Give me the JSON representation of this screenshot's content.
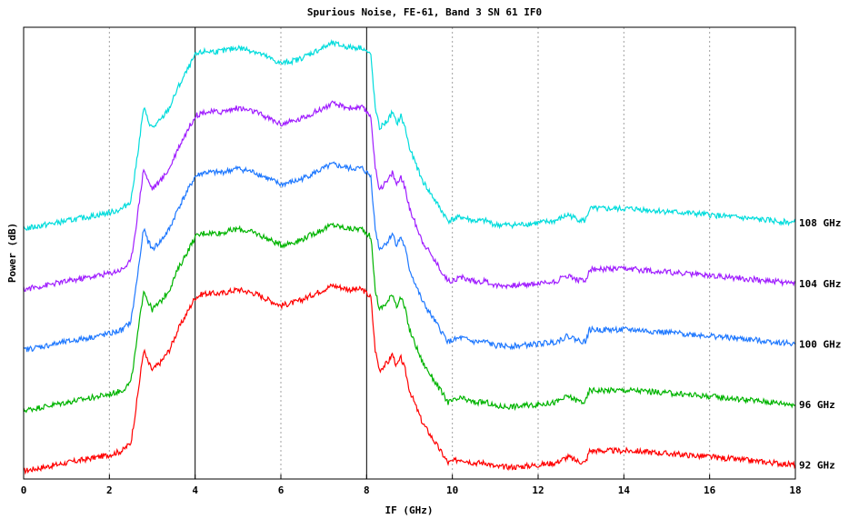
{
  "chart_data": {
    "type": "line",
    "title": "Spurious Noise, FE-61, Band 3 SN 61 IF0",
    "xlabel": "IF (GHz)",
    "ylabel": "Power (dB)",
    "xlim": [
      0,
      18
    ],
    "xticks": [
      "0",
      "2",
      "4",
      "6",
      "8",
      "10",
      "12",
      "14",
      "16",
      "18"
    ],
    "grid": true,
    "reference_lines_x": [
      4,
      8
    ],
    "offset_step_dB": 15,
    "series": [
      {
        "name": "92 GHz",
        "color": "#ff0000",
        "offset": 0
      },
      {
        "name": "96 GHz",
        "color": "#00b400",
        "offset": 15
      },
      {
        "name": "100 GHz",
        "color": "#1e78ff",
        "offset": 30
      },
      {
        "name": "104 GHz",
        "color": "#a01eff",
        "offset": 45
      },
      {
        "name": "108 GHz",
        "color": "#00dcdc",
        "offset": 60
      }
    ],
    "profile": {
      "x": [
        0,
        0.5,
        1,
        1.5,
        2,
        2.3,
        2.5,
        2.6,
        2.7,
        2.8,
        2.9,
        3.0,
        3.2,
        3.4,
        3.6,
        3.8,
        4.0,
        4.2,
        4.6,
        5.0,
        5.4,
        5.8,
        6.0,
        6.4,
        6.8,
        7.2,
        7.6,
        7.9,
        8.1,
        8.2,
        8.3,
        8.5,
        8.6,
        8.7,
        8.8,
        8.9,
        9.0,
        9.3,
        9.6,
        9.9,
        10.2,
        10.5,
        10.8,
        11.0,
        11.5,
        12.0,
        12.4,
        12.7,
        12.9,
        13.1,
        13.2,
        13.6,
        14.2,
        14.8,
        15.4,
        16.0,
        16.5,
        17.0,
        17.5,
        18.0
      ],
      "y": [
        0,
        1,
        2,
        3,
        4,
        5,
        7,
        14,
        22,
        30,
        27,
        25,
        27,
        30,
        35,
        39,
        43,
        44,
        44,
        45,
        44,
        42,
        41,
        42,
        44,
        46,
        45,
        45,
        43,
        30,
        25,
        27,
        29,
        26,
        28,
        25,
        20,
        12,
        7,
        2,
        3,
        2,
        2,
        1,
        1,
        1.5,
        2,
        3.5,
        2.5,
        2,
        5,
        5,
        5,
        4.5,
        4,
        3.5,
        3,
        2.5,
        2,
        1.5
      ]
    }
  }
}
